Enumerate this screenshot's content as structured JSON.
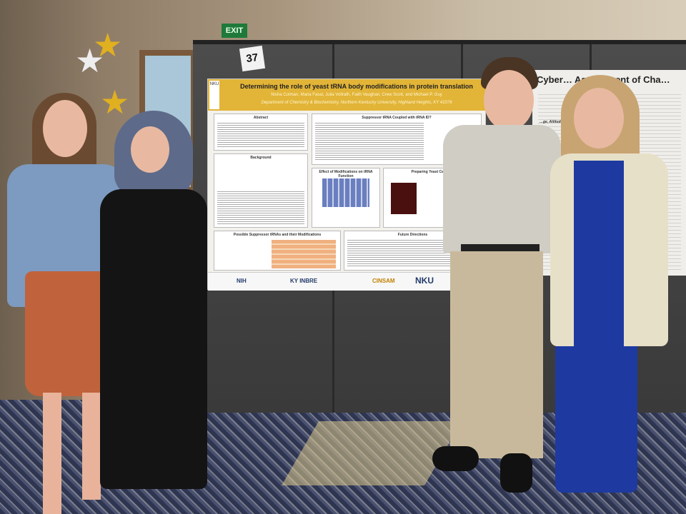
{
  "scene": {
    "exit_sign": "EXIT",
    "board_number": "37"
  },
  "poster_left": {
    "side_logo": "NKU",
    "title": "Determining the role of yeast tRNA body modifications in protein translation",
    "authors": "Nisha Cotman, Maria Fasal, Julia Vollrath, Faith Vaughan, Crew Scott, and Michael P. Guy",
    "department": "Department of Chemistry & Biochemistry, Northern Kentucky University, Highland Heights, KY 41076",
    "sections": [
      "Abstract",
      "Suppressor tRNA Coupled with tRNA ID?",
      "Background",
      "Effect of Modifications on tRNA Function",
      "Preparing Yeast Cells for",
      "Possible Suppressor tRNAs and their Modifications",
      "Future Directions"
    ],
    "footer_logos": [
      "NIH",
      "KY INBRE",
      "CINSAM",
      "NKU"
    ]
  },
  "poster_right": {
    "title": "Cyber… Assessment of Cha…",
    "subtitle": "…ge, Attitude, and Behavior"
  },
  "colors": {
    "poster_header": "#e2b437",
    "board": "#434343",
    "carpet": "#2e3550"
  }
}
